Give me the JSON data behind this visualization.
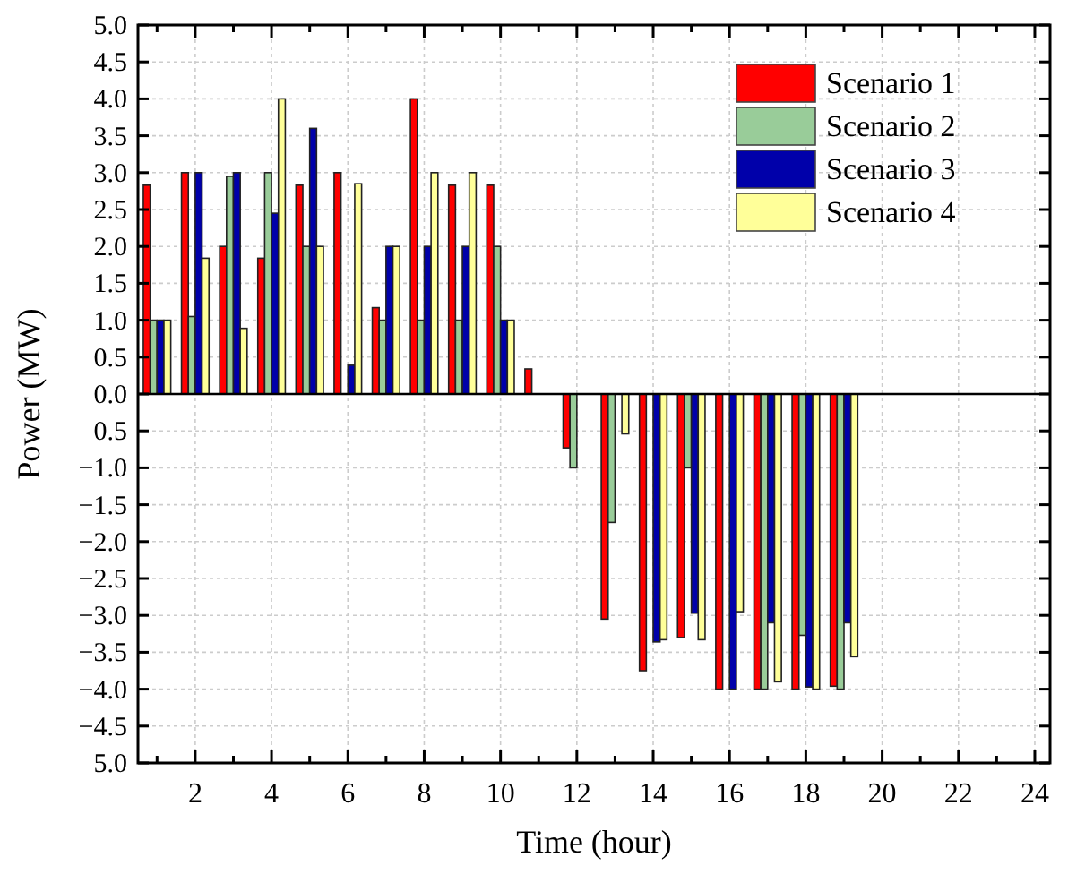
{
  "chart_data": {
    "type": "bar",
    "xlabel": "Time (hour)",
    "ylabel": "Power (MW)",
    "x": [
      1,
      2,
      3,
      4,
      5,
      6,
      7,
      8,
      9,
      10,
      11,
      12,
      13,
      14,
      15,
      16,
      17,
      18,
      19
    ],
    "series": [
      {
        "name": "Scenario 1",
        "color": "#ff0000",
        "values": [
          2.83,
          3.0,
          2.0,
          1.84,
          2.83,
          3.0,
          1.17,
          4.0,
          2.83,
          2.83,
          0.34,
          -0.73,
          -3.05,
          -3.75,
          -3.3,
          -4.0,
          -4.0,
          -4.0,
          -3.96
        ]
      },
      {
        "name": "Scenario 2",
        "color": "#99cc99",
        "values": [
          1.0,
          1.05,
          2.95,
          3.0,
          2.0,
          null,
          1.0,
          1.0,
          1.0,
          2.0,
          null,
          -1.0,
          -1.74,
          null,
          -1.0,
          null,
          -4.0,
          -3.27,
          -4.0
        ]
      },
      {
        "name": "Scenario 3",
        "color": "#0000aa",
        "values": [
          1.0,
          3.0,
          3.0,
          2.45,
          3.6,
          0.39,
          2.0,
          2.0,
          2.0,
          1.0,
          null,
          null,
          null,
          -3.36,
          -2.97,
          -4.0,
          -3.1,
          -3.97,
          -3.1
        ]
      },
      {
        "name": "Scenario 4",
        "color": "#ffff99",
        "values": [
          1.0,
          1.84,
          0.89,
          4.0,
          2.0,
          2.85,
          2.0,
          3.0,
          3.0,
          1.0,
          null,
          null,
          -0.54,
          -3.33,
          -3.33,
          -2.95,
          -3.9,
          -4.0,
          -3.56
        ]
      }
    ],
    "xlim": [
      0.5,
      24.4
    ],
    "xticks": [
      {
        "value": 1,
        "label": null
      },
      2,
      {
        "value": 3,
        "label": null
      },
      4,
      {
        "value": 5,
        "label": null
      },
      6,
      {
        "value": 7,
        "label": null
      },
      8,
      {
        "value": 9,
        "label": null
      },
      10,
      {
        "value": 11,
        "label": null
      },
      12,
      {
        "value": 13,
        "label": null
      },
      14,
      {
        "value": 15,
        "label": null
      },
      16,
      {
        "value": 17,
        "label": null
      },
      18,
      {
        "value": 19,
        "label": null
      },
      20,
      {
        "value": 21,
        "label": null
      },
      22,
      {
        "value": 23,
        "label": null
      },
      24
    ],
    "ylim": [
      -5,
      5
    ],
    "yticks": [
      {
        "value": 5,
        "label": "5.0"
      },
      {
        "value": 4.5,
        "label": "4.5"
      },
      {
        "value": 4,
        "label": "4.0"
      },
      {
        "value": 3.5,
        "label": "3.5"
      },
      {
        "value": 3,
        "label": "3.0"
      },
      {
        "value": 2.5,
        "label": "2.5"
      },
      {
        "value": 2,
        "label": "2.0"
      },
      {
        "value": 1.5,
        "label": "1.5"
      },
      {
        "value": 1,
        "label": "1.0"
      },
      {
        "value": 0.5,
        "label": "0.5"
      },
      {
        "value": 0,
        "label": "0.0"
      },
      {
        "value": -0.5,
        "label": "0.5"
      },
      {
        "value": -1,
        "label": "−1.0"
      },
      {
        "value": -1.5,
        "label": "−1.5"
      },
      {
        "value": -2,
        "label": "−2.0"
      },
      {
        "value": -2.5,
        "label": "−2.5"
      },
      {
        "value": -3,
        "label": "−3.0"
      },
      {
        "value": -3.5,
        "label": "−3.5"
      },
      {
        "value": -4,
        "label": "−4.0"
      },
      {
        "value": -4.5,
        "label": "−4.5"
      },
      {
        "value": -5,
        "label": "5.0"
      }
    ],
    "grid": true,
    "legend": "top right"
  }
}
